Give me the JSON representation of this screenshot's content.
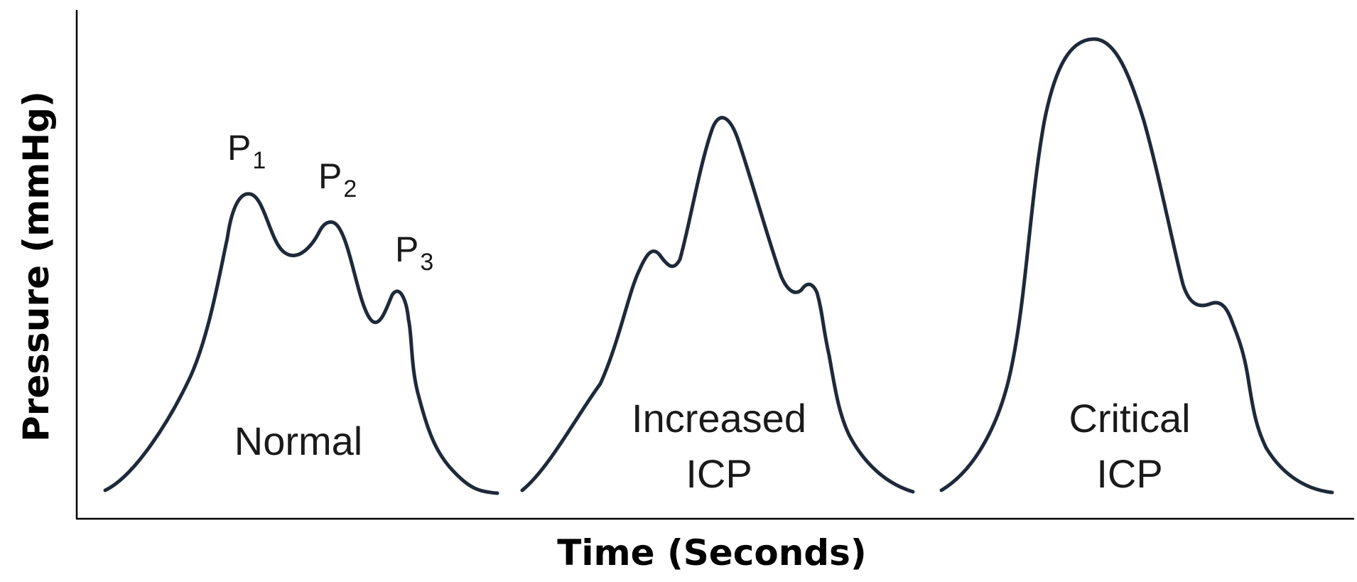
{
  "axes": {
    "x_title": "Time (Seconds)",
    "y_title": "Pressure (mmHg)"
  },
  "waveforms": [
    {
      "id": "normal",
      "label_lines": [
        "Normal"
      ],
      "peaks": [
        {
          "letter": "P",
          "sub": "1"
        },
        {
          "letter": "P",
          "sub": "2"
        },
        {
          "letter": "P",
          "sub": "3"
        }
      ]
    },
    {
      "id": "increased",
      "label_lines": [
        "Increased",
        "ICP"
      ]
    },
    {
      "id": "critical",
      "label_lines": [
        "Critical",
        "ICP"
      ]
    }
  ],
  "colors": {
    "stroke": "#1e2a3a",
    "axis": "#000000",
    "text": "#1a1a1a"
  }
}
